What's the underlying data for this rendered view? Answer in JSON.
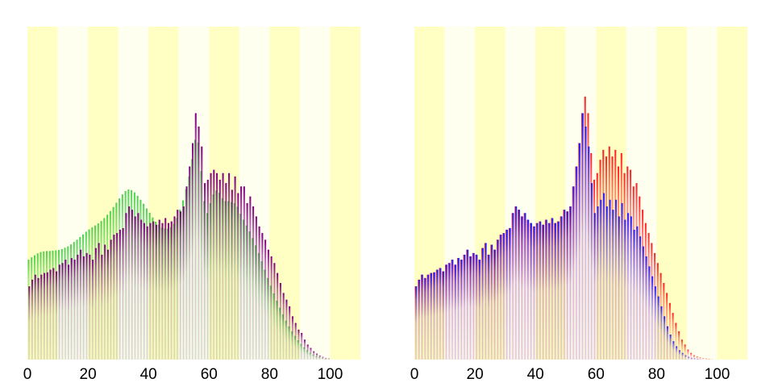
{
  "chart_data": [
    {
      "type": "bar",
      "panel": "left",
      "xlim": [
        0,
        110
      ],
      "ylim": [
        0,
        1.0
      ],
      "xticks": [
        0,
        20,
        40,
        60,
        80,
        100
      ],
      "xtick_labels": [
        "0",
        "20",
        "40",
        "60",
        "80",
        "100"
      ],
      "band_colors": [
        "#ffffc4",
        "#fffff0"
      ],
      "band_width": 10,
      "series": [
        {
          "color": "#50d050",
          "x": [
            0,
            1,
            2,
            3,
            4,
            5,
            6,
            7,
            8,
            9,
            10,
            11,
            12,
            13,
            14,
            15,
            16,
            17,
            18,
            19,
            20,
            21,
            22,
            23,
            24,
            25,
            26,
            27,
            28,
            29,
            30,
            31,
            32,
            33,
            34,
            35,
            36,
            37,
            38,
            39,
            40,
            41,
            42,
            43,
            44,
            45,
            46,
            47,
            48,
            49,
            50,
            51,
            52,
            53,
            54,
            55,
            56,
            57,
            58,
            59,
            60,
            61,
            62,
            63,
            64,
            65,
            66,
            67,
            68,
            69,
            70,
            71,
            72,
            73,
            74,
            75,
            76,
            77,
            78,
            79,
            80,
            81,
            82,
            83,
            84,
            85,
            86,
            87,
            88,
            89,
            90,
            91,
            92,
            93,
            94,
            95,
            96,
            97,
            98,
            99,
            100
          ],
          "values": [
            0.3,
            0.307,
            0.313,
            0.319,
            0.323,
            0.325,
            0.326,
            0.326,
            0.327,
            0.328,
            0.329,
            0.332,
            0.336,
            0.34,
            0.346,
            0.353,
            0.36,
            0.368,
            0.376,
            0.384,
            0.391,
            0.397,
            0.403,
            0.409,
            0.416,
            0.425,
            0.435,
            0.446,
            0.458,
            0.471,
            0.484,
            0.496,
            0.506,
            0.511,
            0.509,
            0.502,
            0.492,
            0.48,
            0.468,
            0.454,
            0.441,
            0.427,
            0.414,
            0.405,
            0.397,
            0.394,
            0.393,
            0.398,
            0.408,
            0.425,
            0.45,
            0.478,
            0.512,
            0.55,
            0.602,
            0.66,
            0.652,
            0.566,
            0.476,
            0.44,
            0.47,
            0.496,
            0.508,
            0.501,
            0.485,
            0.476,
            0.476,
            0.473,
            0.47,
            0.459,
            0.438,
            0.42,
            0.403,
            0.385,
            0.365,
            0.343,
            0.32,
            0.295,
            0.27,
            0.245,
            0.222,
            0.199,
            0.177,
            0.156,
            0.136,
            0.117,
            0.1,
            0.085,
            0.071,
            0.058,
            0.047,
            0.037,
            0.028,
            0.021,
            0.015,
            0.01,
            0.007,
            0.004,
            0.002,
            0.001,
            0.0
          ]
        },
        {
          "color": "#800080",
          "x": [
            0,
            1,
            2,
            3,
            4,
            5,
            6,
            7,
            8,
            9,
            10,
            11,
            12,
            13,
            14,
            15,
            16,
            17,
            18,
            19,
            20,
            21,
            22,
            23,
            24,
            25,
            26,
            27,
            28,
            29,
            30,
            31,
            32,
            33,
            34,
            35,
            36,
            37,
            38,
            39,
            40,
            41,
            42,
            43,
            44,
            45,
            46,
            47,
            48,
            49,
            50,
            51,
            52,
            53,
            54,
            55,
            56,
            57,
            58,
            59,
            60,
            61,
            62,
            63,
            64,
            65,
            66,
            67,
            68,
            69,
            70,
            71,
            72,
            73,
            74,
            75,
            76,
            77,
            78,
            79,
            80,
            81,
            82,
            83,
            84,
            85,
            86,
            87,
            88,
            89,
            90,
            91,
            92,
            93,
            94,
            95,
            96,
            97,
            98,
            99,
            100
          ],
          "values": [
            0.22,
            0.24,
            0.255,
            0.245,
            0.255,
            0.26,
            0.262,
            0.27,
            0.275,
            0.265,
            0.285,
            0.29,
            0.3,
            0.285,
            0.305,
            0.3,
            0.315,
            0.33,
            0.31,
            0.32,
            0.315,
            0.3,
            0.335,
            0.35,
            0.315,
            0.345,
            0.33,
            0.36,
            0.375,
            0.38,
            0.39,
            0.395,
            0.44,
            0.46,
            0.45,
            0.43,
            0.44,
            0.42,
            0.41,
            0.4,
            0.41,
            0.415,
            0.405,
            0.42,
            0.41,
            0.425,
            0.41,
            0.415,
            0.43,
            0.45,
            0.445,
            0.46,
            0.52,
            0.58,
            0.65,
            0.74,
            0.7,
            0.64,
            0.53,
            0.54,
            0.56,
            0.57,
            0.56,
            0.54,
            0.56,
            0.53,
            0.56,
            0.51,
            0.55,
            0.5,
            0.52,
            0.52,
            0.47,
            0.49,
            0.46,
            0.43,
            0.4,
            0.38,
            0.36,
            0.33,
            0.31,
            0.29,
            0.26,
            0.23,
            0.2,
            0.18,
            0.16,
            0.13,
            0.11,
            0.09,
            0.08,
            0.06,
            0.045,
            0.035,
            0.025,
            0.018,
            0.012,
            0.008,
            0.005,
            0.003,
            0.0
          ]
        }
      ]
    },
    {
      "type": "bar",
      "panel": "right",
      "xlim": [
        0,
        110
      ],
      "ylim": [
        0,
        1.0
      ],
      "xticks": [
        0,
        20,
        40,
        60,
        80,
        100
      ],
      "xtick_labels": [
        "0",
        "20",
        "40",
        "60",
        "80",
        "100"
      ],
      "band_colors": [
        "#ffffc4",
        "#fffff0"
      ],
      "band_width": 10,
      "series": [
        {
          "color": "#ff2020",
          "x": [
            0,
            1,
            2,
            3,
            4,
            5,
            6,
            7,
            8,
            9,
            10,
            11,
            12,
            13,
            14,
            15,
            16,
            17,
            18,
            19,
            20,
            21,
            22,
            23,
            24,
            25,
            26,
            27,
            28,
            29,
            30,
            31,
            32,
            33,
            34,
            35,
            36,
            37,
            38,
            39,
            40,
            41,
            42,
            43,
            44,
            45,
            46,
            47,
            48,
            49,
            50,
            51,
            52,
            53,
            54,
            55,
            56,
            57,
            58,
            59,
            60,
            61,
            62,
            63,
            64,
            65,
            66,
            67,
            68,
            69,
            70,
            71,
            72,
            73,
            74,
            75,
            76,
            77,
            78,
            79,
            80,
            81,
            82,
            83,
            84,
            85,
            86,
            87,
            88,
            89,
            90,
            91,
            92,
            93,
            94,
            95,
            96,
            97,
            98,
            99,
            100
          ],
          "values": [
            0.22,
            0.24,
            0.255,
            0.245,
            0.255,
            0.26,
            0.262,
            0.27,
            0.275,
            0.265,
            0.285,
            0.29,
            0.3,
            0.285,
            0.305,
            0.3,
            0.315,
            0.33,
            0.31,
            0.32,
            0.315,
            0.3,
            0.335,
            0.35,
            0.315,
            0.345,
            0.33,
            0.36,
            0.375,
            0.38,
            0.39,
            0.395,
            0.44,
            0.46,
            0.45,
            0.43,
            0.44,
            0.42,
            0.41,
            0.4,
            0.41,
            0.415,
            0.405,
            0.42,
            0.41,
            0.425,
            0.41,
            0.415,
            0.43,
            0.45,
            0.445,
            0.46,
            0.52,
            0.58,
            0.65,
            0.74,
            0.79,
            0.74,
            0.62,
            0.54,
            0.56,
            0.6,
            0.63,
            0.61,
            0.64,
            0.61,
            0.63,
            0.58,
            0.62,
            0.56,
            0.58,
            0.57,
            0.52,
            0.53,
            0.49,
            0.45,
            0.41,
            0.38,
            0.35,
            0.32,
            0.29,
            0.26,
            0.23,
            0.2,
            0.17,
            0.14,
            0.11,
            0.085,
            0.06,
            0.045,
            0.03,
            0.02,
            0.013,
            0.009,
            0.006,
            0.004,
            0.003,
            0.002,
            0.001,
            0.0,
            0.0
          ]
        },
        {
          "color": "#2020ff",
          "x": [
            0,
            1,
            2,
            3,
            4,
            5,
            6,
            7,
            8,
            9,
            10,
            11,
            12,
            13,
            14,
            15,
            16,
            17,
            18,
            19,
            20,
            21,
            22,
            23,
            24,
            25,
            26,
            27,
            28,
            29,
            30,
            31,
            32,
            33,
            34,
            35,
            36,
            37,
            38,
            39,
            40,
            41,
            42,
            43,
            44,
            45,
            46,
            47,
            48,
            49,
            50,
            51,
            52,
            53,
            54,
            55,
            56,
            57,
            58,
            59,
            60,
            61,
            62,
            63,
            64,
            65,
            66,
            67,
            68,
            69,
            70,
            71,
            72,
            73,
            74,
            75,
            76,
            77,
            78,
            79,
            80,
            81,
            82,
            83,
            84,
            85,
            86,
            87,
            88,
            89,
            90,
            91,
            92,
            93,
            94,
            95,
            96,
            97,
            98,
            99,
            100
          ],
          "values": [
            0.22,
            0.24,
            0.255,
            0.245,
            0.255,
            0.26,
            0.262,
            0.27,
            0.275,
            0.265,
            0.285,
            0.29,
            0.3,
            0.285,
            0.305,
            0.3,
            0.315,
            0.33,
            0.31,
            0.32,
            0.315,
            0.3,
            0.335,
            0.35,
            0.315,
            0.345,
            0.33,
            0.36,
            0.375,
            0.38,
            0.39,
            0.395,
            0.44,
            0.46,
            0.45,
            0.43,
            0.44,
            0.42,
            0.41,
            0.4,
            0.41,
            0.415,
            0.405,
            0.42,
            0.41,
            0.425,
            0.41,
            0.415,
            0.43,
            0.45,
            0.445,
            0.46,
            0.52,
            0.58,
            0.65,
            0.74,
            0.7,
            0.64,
            0.53,
            0.44,
            0.46,
            0.48,
            0.5,
            0.46,
            0.48,
            0.45,
            0.48,
            0.43,
            0.47,
            0.42,
            0.44,
            0.43,
            0.39,
            0.4,
            0.37,
            0.34,
            0.31,
            0.28,
            0.25,
            0.22,
            0.19,
            0.16,
            0.13,
            0.1,
            0.075,
            0.055,
            0.04,
            0.028,
            0.02,
            0.013,
            0.008,
            0.005,
            0.003,
            0.002,
            0.001,
            0.0,
            0.0,
            0.0,
            0.0,
            0.0,
            0.0
          ]
        }
      ]
    }
  ]
}
